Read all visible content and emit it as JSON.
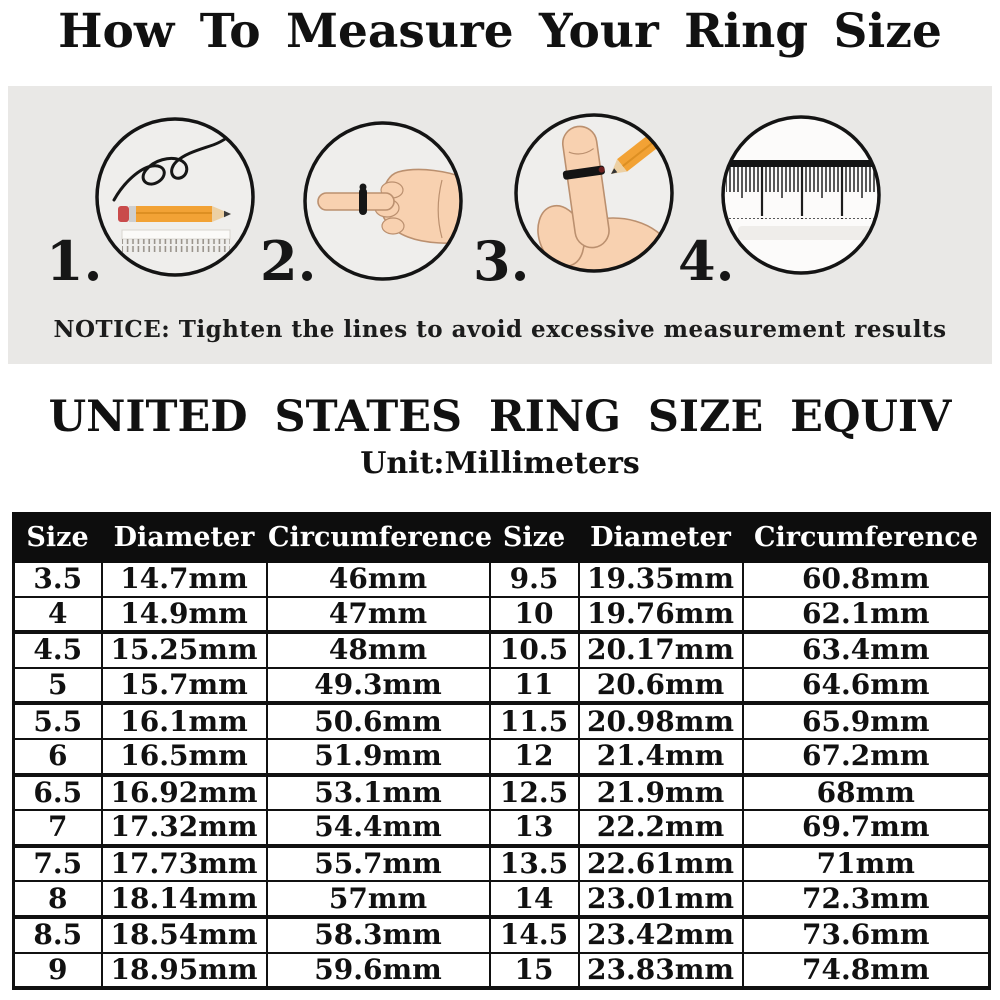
{
  "page": {
    "title": "How To Measure Your Ring Size",
    "notice": "NOTICE: Tighten the lines to avoid excessive measurement results",
    "section_title": "UNITED STATES RING SIZE EQUIV",
    "section_subtitle": "Unit:Millimeters"
  },
  "steps": [
    {
      "number": "1.",
      "icon": "thread-pencil-ruler-icon"
    },
    {
      "number": "2.",
      "icon": "string-on-finger-icon"
    },
    {
      "number": "3.",
      "icon": "mark-string-with-pencil-icon"
    },
    {
      "number": "4.",
      "icon": "ruler-measure-icon"
    }
  ],
  "table": {
    "headers": [
      "Size",
      "Diameter",
      "Circumference",
      "Size",
      "Diameter",
      "Circumference"
    ],
    "rows": [
      [
        "3.5",
        "14.7mm",
        "46mm",
        "9.5",
        "19.35mm",
        "60.8mm"
      ],
      [
        "4",
        "14.9mm",
        "47mm",
        "10",
        "19.76mm",
        "62.1mm"
      ],
      [
        "4.5",
        "15.25mm",
        "48mm",
        "10.5",
        "20.17mm",
        "63.4mm"
      ],
      [
        "5",
        "15.7mm",
        "49.3mm",
        "11",
        "20.6mm",
        "64.6mm"
      ],
      [
        "5.5",
        "16.1mm",
        "50.6mm",
        "11.5",
        "20.98mm",
        "65.9mm"
      ],
      [
        "6",
        "16.5mm",
        "51.9mm",
        "12",
        "21.4mm",
        "67.2mm"
      ],
      [
        "6.5",
        "16.92mm",
        "53.1mm",
        "12.5",
        "21.9mm",
        "68mm"
      ],
      [
        "7",
        "17.32mm",
        "54.4mm",
        "13",
        "22.2mm",
        "69.7mm"
      ],
      [
        "7.5",
        "17.73mm",
        "55.7mm",
        "13.5",
        "22.61mm",
        "71mm"
      ],
      [
        "8",
        "18.14mm",
        "57mm",
        "14",
        "23.01mm",
        "72.3mm"
      ],
      [
        "8.5",
        "18.54mm",
        "58.3mm",
        "14.5",
        "23.42mm",
        "73.6mm"
      ],
      [
        "9",
        "18.95mm",
        "59.6mm",
        "15",
        "23.83mm",
        "74.8mm"
      ]
    ]
  },
  "colors": {
    "panel_bg": "#e9e8e6",
    "table_header_bg": "#0d0d0d",
    "table_header_text": "#ffffff",
    "text": "#111111",
    "pencil_orange": "#f2a235",
    "eraser_red": "#c94b4b",
    "skin": "#f8d1b0",
    "string_black": "#161616"
  }
}
